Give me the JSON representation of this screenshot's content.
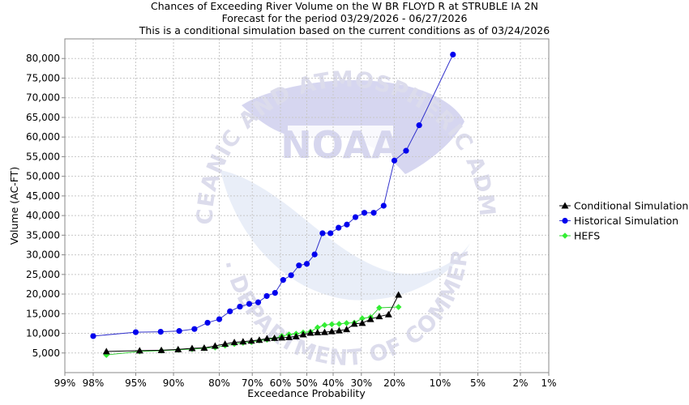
{
  "chart_data": {
    "type": "scatter",
    "title": "Chances of Exceeding River Volume on the W BR FLOYD R at STRUBLE IA 2N",
    "subtitle": [
      "Forecast for the period 03/29/2026 - 06/27/2026",
      "This is a conditional simulation based on the current conditions as of 03/24/2026"
    ],
    "xlabel": "Exceedance Probability",
    "ylabel": "Volume (AC-FT)",
    "x_scale": "normal-probability",
    "x_ticks": [
      {
        "value": 99,
        "label": "99%"
      },
      {
        "value": 98,
        "label": "98%"
      },
      {
        "value": 95,
        "label": "95%"
      },
      {
        "value": 90,
        "label": "90%"
      },
      {
        "value": 80,
        "label": "80%"
      },
      {
        "value": 70,
        "label": "70%"
      },
      {
        "value": 60,
        "label": "60%"
      },
      {
        "value": 50,
        "label": "50%"
      },
      {
        "value": 40,
        "label": "40%"
      },
      {
        "value": 30,
        "label": "30%"
      },
      {
        "value": 20,
        "label": "20%"
      },
      {
        "value": 10,
        "label": "10%"
      },
      {
        "value": 5,
        "label": "5%"
      },
      {
        "value": 2,
        "label": "2%"
      },
      {
        "value": 1,
        "label": "1%"
      }
    ],
    "ylim": [
      0,
      85000
    ],
    "y_ticks": [
      {
        "value": 5000,
        "label": "5,000"
      },
      {
        "value": 10000,
        "label": "10,000"
      },
      {
        "value": 15000,
        "label": "15,000"
      },
      {
        "value": 20000,
        "label": "20,000"
      },
      {
        "value": 25000,
        "label": "25,000"
      },
      {
        "value": 30000,
        "label": "30,000"
      },
      {
        "value": 35000,
        "label": "35,000"
      },
      {
        "value": 40000,
        "label": "40,000"
      },
      {
        "value": 45000,
        "label": "45,000"
      },
      {
        "value": 50000,
        "label": "50,000"
      },
      {
        "value": 55000,
        "label": "55,000"
      },
      {
        "value": 60000,
        "label": "60,000"
      },
      {
        "value": 65000,
        "label": "65,000"
      },
      {
        "value": 70000,
        "label": "70,000"
      },
      {
        "value": 75000,
        "label": "75,000"
      },
      {
        "value": 80000,
        "label": "80,000"
      }
    ],
    "grid": true,
    "legend_position": "right",
    "series": [
      {
        "name": "Conditional Simulation",
        "marker": "triangle",
        "color": "#000000",
        "line_color": "#000000",
        "points": [
          {
            "x": 97.3,
            "y": 5400
          },
          {
            "x": 94.6,
            "y": 5600
          },
          {
            "x": 91.9,
            "y": 5700
          },
          {
            "x": 89.2,
            "y": 5900
          },
          {
            "x": 86.5,
            "y": 6200
          },
          {
            "x": 83.8,
            "y": 6300
          },
          {
            "x": 81.1,
            "y": 6800
          },
          {
            "x": 78.4,
            "y": 7300
          },
          {
            "x": 75.7,
            "y": 7700
          },
          {
            "x": 73.0,
            "y": 7900
          },
          {
            "x": 70.3,
            "y": 8100
          },
          {
            "x": 67.6,
            "y": 8300
          },
          {
            "x": 64.9,
            "y": 8700
          },
          {
            "x": 62.2,
            "y": 8800
          },
          {
            "x": 59.5,
            "y": 8900
          },
          {
            "x": 56.8,
            "y": 9000
          },
          {
            "x": 54.1,
            "y": 9200
          },
          {
            "x": 51.4,
            "y": 9700
          },
          {
            "x": 48.6,
            "y": 10100
          },
          {
            "x": 45.9,
            "y": 10200
          },
          {
            "x": 43.2,
            "y": 10300
          },
          {
            "x": 40.5,
            "y": 10500
          },
          {
            "x": 37.8,
            "y": 10700
          },
          {
            "x": 35.1,
            "y": 11000
          },
          {
            "x": 32.4,
            "y": 12400
          },
          {
            "x": 29.7,
            "y": 12600
          },
          {
            "x": 27.0,
            "y": 13600
          },
          {
            "x": 24.3,
            "y": 14300
          },
          {
            "x": 21.6,
            "y": 14800
          },
          {
            "x": 18.9,
            "y": 19800
          }
        ]
      },
      {
        "name": "Historical Simulation",
        "marker": "circle",
        "color": "#0000ee",
        "line_color": "#3333cc",
        "points": [
          {
            "x": 98.0,
            "y": 9300
          },
          {
            "x": 95.0,
            "y": 10300
          },
          {
            "x": 92.0,
            "y": 10400
          },
          {
            "x": 89.0,
            "y": 10600
          },
          {
            "x": 86.0,
            "y": 11100
          },
          {
            "x": 83.0,
            "y": 12700
          },
          {
            "x": 80.0,
            "y": 13600
          },
          {
            "x": 77.0,
            "y": 15600
          },
          {
            "x": 74.0,
            "y": 16800
          },
          {
            "x": 71.0,
            "y": 17500
          },
          {
            "x": 68.0,
            "y": 17900
          },
          {
            "x": 65.0,
            "y": 19500
          },
          {
            "x": 62.0,
            "y": 20300
          },
          {
            "x": 59.0,
            "y": 23600
          },
          {
            "x": 56.0,
            "y": 24800
          },
          {
            "x": 53.0,
            "y": 27300
          },
          {
            "x": 50.0,
            "y": 27700
          },
          {
            "x": 47.0,
            "y": 30100
          },
          {
            "x": 44.0,
            "y": 35500
          },
          {
            "x": 41.0,
            "y": 35500
          },
          {
            "x": 38.0,
            "y": 36900
          },
          {
            "x": 35.0,
            "y": 37700
          },
          {
            "x": 32.0,
            "y": 39600
          },
          {
            "x": 29.0,
            "y": 40700
          },
          {
            "x": 26.0,
            "y": 40700
          },
          {
            "x": 23.0,
            "y": 42500
          },
          {
            "x": 20.0,
            "y": 54000
          },
          {
            "x": 17.0,
            "y": 56500
          },
          {
            "x": 14.0,
            "y": 63000
          },
          {
            "x": 8.0,
            "y": 81000
          }
        ]
      },
      {
        "name": "HEFS",
        "marker": "diamond",
        "color": "#33ee33",
        "line_color": "#33cc33",
        "points": [
          {
            "x": 97.3,
            "y": 4500
          },
          {
            "x": 94.6,
            "y": 5400
          },
          {
            "x": 91.9,
            "y": 5600
          },
          {
            "x": 89.2,
            "y": 5800
          },
          {
            "x": 86.5,
            "y": 6000
          },
          {
            "x": 83.8,
            "y": 6200
          },
          {
            "x": 81.1,
            "y": 6400
          },
          {
            "x": 78.4,
            "y": 6900
          },
          {
            "x": 75.7,
            "y": 7300
          },
          {
            "x": 73.0,
            "y": 7600
          },
          {
            "x": 70.3,
            "y": 7800
          },
          {
            "x": 67.6,
            "y": 8200
          },
          {
            "x": 64.9,
            "y": 8400
          },
          {
            "x": 62.2,
            "y": 8700
          },
          {
            "x": 59.5,
            "y": 9300
          },
          {
            "x": 56.8,
            "y": 9700
          },
          {
            "x": 54.1,
            "y": 9900
          },
          {
            "x": 51.4,
            "y": 10200
          },
          {
            "x": 48.6,
            "y": 10400
          },
          {
            "x": 45.9,
            "y": 11500
          },
          {
            "x": 43.2,
            "y": 12100
          },
          {
            "x": 40.5,
            "y": 12300
          },
          {
            "x": 37.8,
            "y": 12400
          },
          {
            "x": 35.1,
            "y": 12600
          },
          {
            "x": 32.4,
            "y": 12700
          },
          {
            "x": 29.7,
            "y": 13800
          },
          {
            "x": 27.0,
            "y": 14100
          },
          {
            "x": 24.3,
            "y": 16500
          },
          {
            "x": 18.9,
            "y": 16700
          }
        ]
      }
    ]
  },
  "watermark": {
    "logo_text": "NOAA",
    "ring_text_top": "NATIONAL OCEANIC AND ATMOSPHERIC ADMINISTRATION",
    "ring_text_bottom": "U.S. DEPARTMENT OF COMMERCE"
  }
}
